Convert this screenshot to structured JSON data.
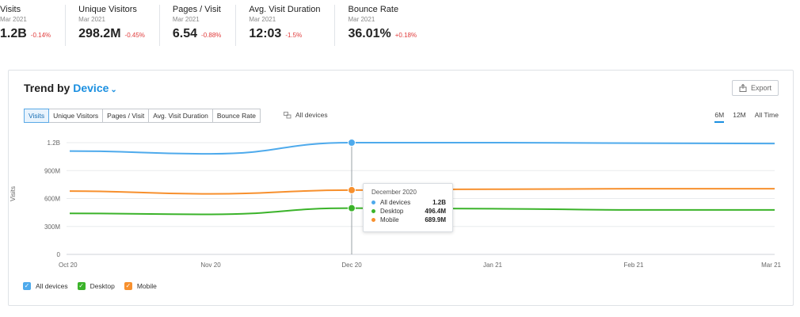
{
  "kpis": [
    {
      "title": "Visits",
      "period": "Mar 2021",
      "value": "1.2B",
      "delta": "-0.14%"
    },
    {
      "title": "Unique Visitors",
      "period": "Mar 2021",
      "value": "298.2M",
      "delta": "-0.45%"
    },
    {
      "title": "Pages / Visit",
      "period": "Mar 2021",
      "value": "6.54",
      "delta": "-0.88%"
    },
    {
      "title": "Avg. Visit Duration",
      "period": "Mar 2021",
      "value": "12:03",
      "delta": "-1.5%"
    },
    {
      "title": "Bounce Rate",
      "period": "Mar 2021",
      "value": "36.01%",
      "delta": "+0.18%"
    }
  ],
  "card": {
    "title_prefix": "Trend by",
    "title_dimension": "Device",
    "export_label": "Export",
    "tabs": [
      "Visits",
      "Unique Visitors",
      "Pages / Visit",
      "Avg. Visit Duration",
      "Bounce Rate"
    ],
    "active_tab": "Visits",
    "device_filter": "All devices",
    "ranges": [
      "6M",
      "12M",
      "All Time"
    ],
    "active_range": "6M"
  },
  "tooltip": {
    "title": "December 2020",
    "rows": [
      {
        "name": "All devices",
        "value": "1.2B",
        "color": "#4eaaec"
      },
      {
        "name": "Desktop",
        "value": "496.4M",
        "color": "#3bb32a"
      },
      {
        "name": "Mobile",
        "value": "689.9M",
        "color": "#f7902e"
      }
    ]
  },
  "legend": [
    {
      "label": "All devices",
      "color": "#4eaaec"
    },
    {
      "label": "Desktop",
      "color": "#3bb32a"
    },
    {
      "label": "Mobile",
      "color": "#f7902e"
    }
  ],
  "colors": {
    "accent": "#1a8fe0",
    "negative": "#e03b3b"
  },
  "chart_data": {
    "type": "line",
    "x": [
      "Oct 20",
      "Nov 20",
      "Dec 20",
      "Jan 21",
      "Feb 21",
      "Mar 21"
    ],
    "ylabel": "Visits",
    "yticks": [
      "0",
      "300M",
      "600M",
      "900M",
      "1.2B"
    ],
    "ylim": [
      0,
      1200000000
    ],
    "grid": true,
    "highlight_index": 2,
    "series": [
      {
        "name": "All devices",
        "color": "#4eaaec",
        "values": [
          1110000000,
          1080000000,
          1200000000,
          1200000000,
          1195000000,
          1190000000
        ]
      },
      {
        "name": "Mobile",
        "color": "#f7902e",
        "values": [
          680000000,
          650000000,
          689900000,
          700000000,
          705000000,
          705000000
        ]
      },
      {
        "name": "Desktop",
        "color": "#3bb32a",
        "values": [
          440000000,
          430000000,
          496400000,
          490000000,
          478000000,
          478000000
        ]
      }
    ]
  }
}
